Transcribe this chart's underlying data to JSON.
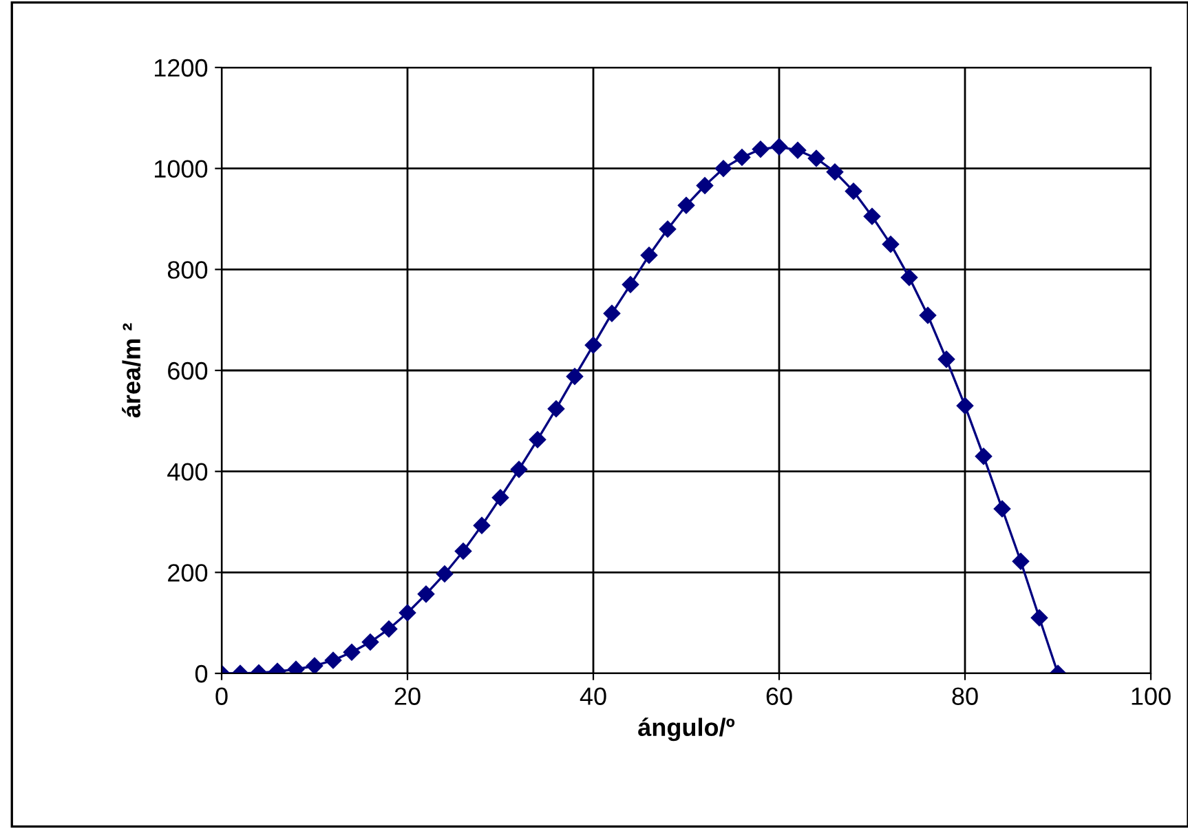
{
  "chart_data": {
    "type": "line",
    "xlabel": "ángulo/º",
    "ylabel": "área/m ²",
    "x": [
      0,
      2,
      4,
      6,
      8,
      10,
      12,
      14,
      16,
      18,
      20,
      22,
      24,
      26,
      28,
      30,
      32,
      34,
      36,
      38,
      40,
      42,
      44,
      46,
      48,
      50,
      52,
      54,
      56,
      58,
      60,
      62,
      64,
      66,
      68,
      70,
      72,
      74,
      76,
      78,
      80,
      82,
      84,
      86,
      88,
      90
    ],
    "series": [
      {
        "color": "#000080",
        "values": [
          0,
          0,
          1,
          4,
          8,
          15,
          26,
          42,
          62,
          88,
          120,
          157,
          197,
          242,
          293,
          348,
          404,
          463,
          524,
          588,
          650,
          713,
          770,
          828,
          880,
          927,
          966,
          1000,
          1022,
          1038,
          1043,
          1036,
          1020,
          993,
          955,
          905,
          850,
          784,
          709,
          622,
          530,
          430,
          326,
          222,
          110,
          0
        ]
      }
    ],
    "xlim": [
      0,
      100
    ],
    "xticks": [
      0,
      20,
      40,
      60,
      80,
      100
    ],
    "ylim": [
      0,
      1200
    ],
    "yticks": [
      0,
      200,
      400,
      600,
      800,
      1000,
      1200
    ],
    "grid": true,
    "marker": "diamond",
    "line_style": "solid",
    "legend": false
  }
}
